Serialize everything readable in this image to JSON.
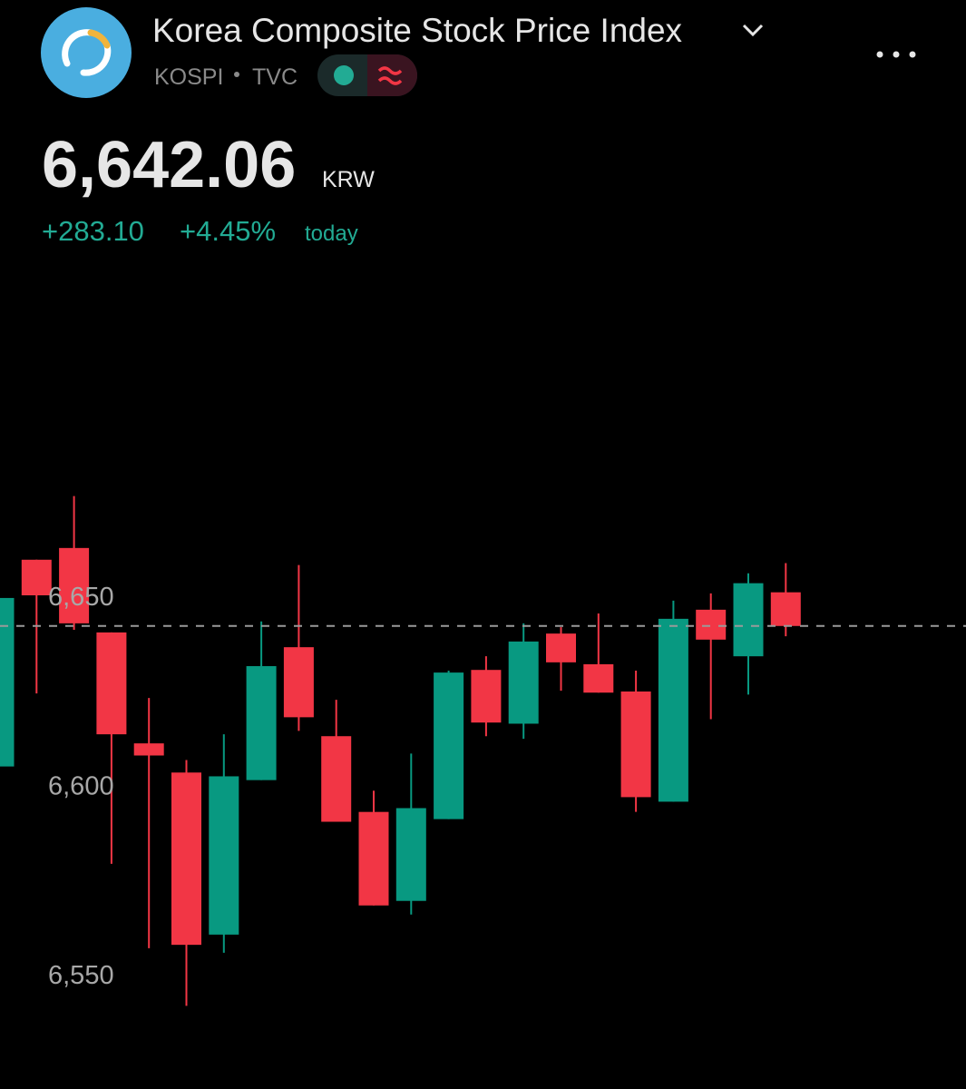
{
  "header": {
    "title": "Korea Composite Stock Price Index",
    "symbol": "KOSPI",
    "exchange": "TVC",
    "price": "6,642.06",
    "currency": "KRW",
    "change": "+283.10",
    "change_pct": "+4.45%",
    "period": "today"
  },
  "chart_data": {
    "type": "candlestick",
    "up_color": "#089981",
    "down_color": "#f23645",
    "open": [
      6605.0,
      6659.6,
      6662.7,
      6640.4,
      6611.1,
      6603.4,
      6560.6,
      6601.4,
      6636.5,
      6613.0,
      6593.0,
      6569.5,
      6591.1,
      6630.5,
      6616.3,
      6640.1,
      6632.0,
      6624.8,
      6595.7,
      6646.4,
      6634.1,
      6651.0
    ],
    "high": [
      6656.7,
      6659.6,
      6676.4,
      6640.4,
      6623.1,
      6606.7,
      6613.5,
      6643.3,
      6658.2,
      6622.6,
      6598.6,
      6608.4,
      6630.3,
      6634.1,
      6642.8,
      6641.8,
      6645.4,
      6630.3,
      6648.8,
      6650.7,
      6656.0,
      6658.7
    ],
    "low": [
      6593.0,
      6624.3,
      6641.1,
      6579.3,
      6557.0,
      6541.8,
      6555.8,
      6601.4,
      6614.4,
      6590.4,
      6568.3,
      6565.9,
      6591.1,
      6613.0,
      6612.3,
      6625.0,
      6624.5,
      6593.0,
      6595.7,
      6617.5,
      6624.0,
      6639.4
    ],
    "close": [
      6649.5,
      6650.2,
      6642.8,
      6613.5,
      6607.9,
      6557.9,
      6602.4,
      6631.5,
      6618.0,
      6590.4,
      6568.3,
      6594.0,
      6629.8,
      6616.6,
      6638.0,
      6632.5,
      6624.5,
      6596.9,
      6644.0,
      6638.5,
      6653.4,
      6642.1
    ],
    "ylim": [
      6539,
      6678
    ],
    "yticks": [
      {
        "value": 6550,
        "label": "6,550"
      },
      {
        "value": 6600,
        "label": "6,600"
      },
      {
        "value": 6650,
        "label": "6,650"
      }
    ]
  }
}
